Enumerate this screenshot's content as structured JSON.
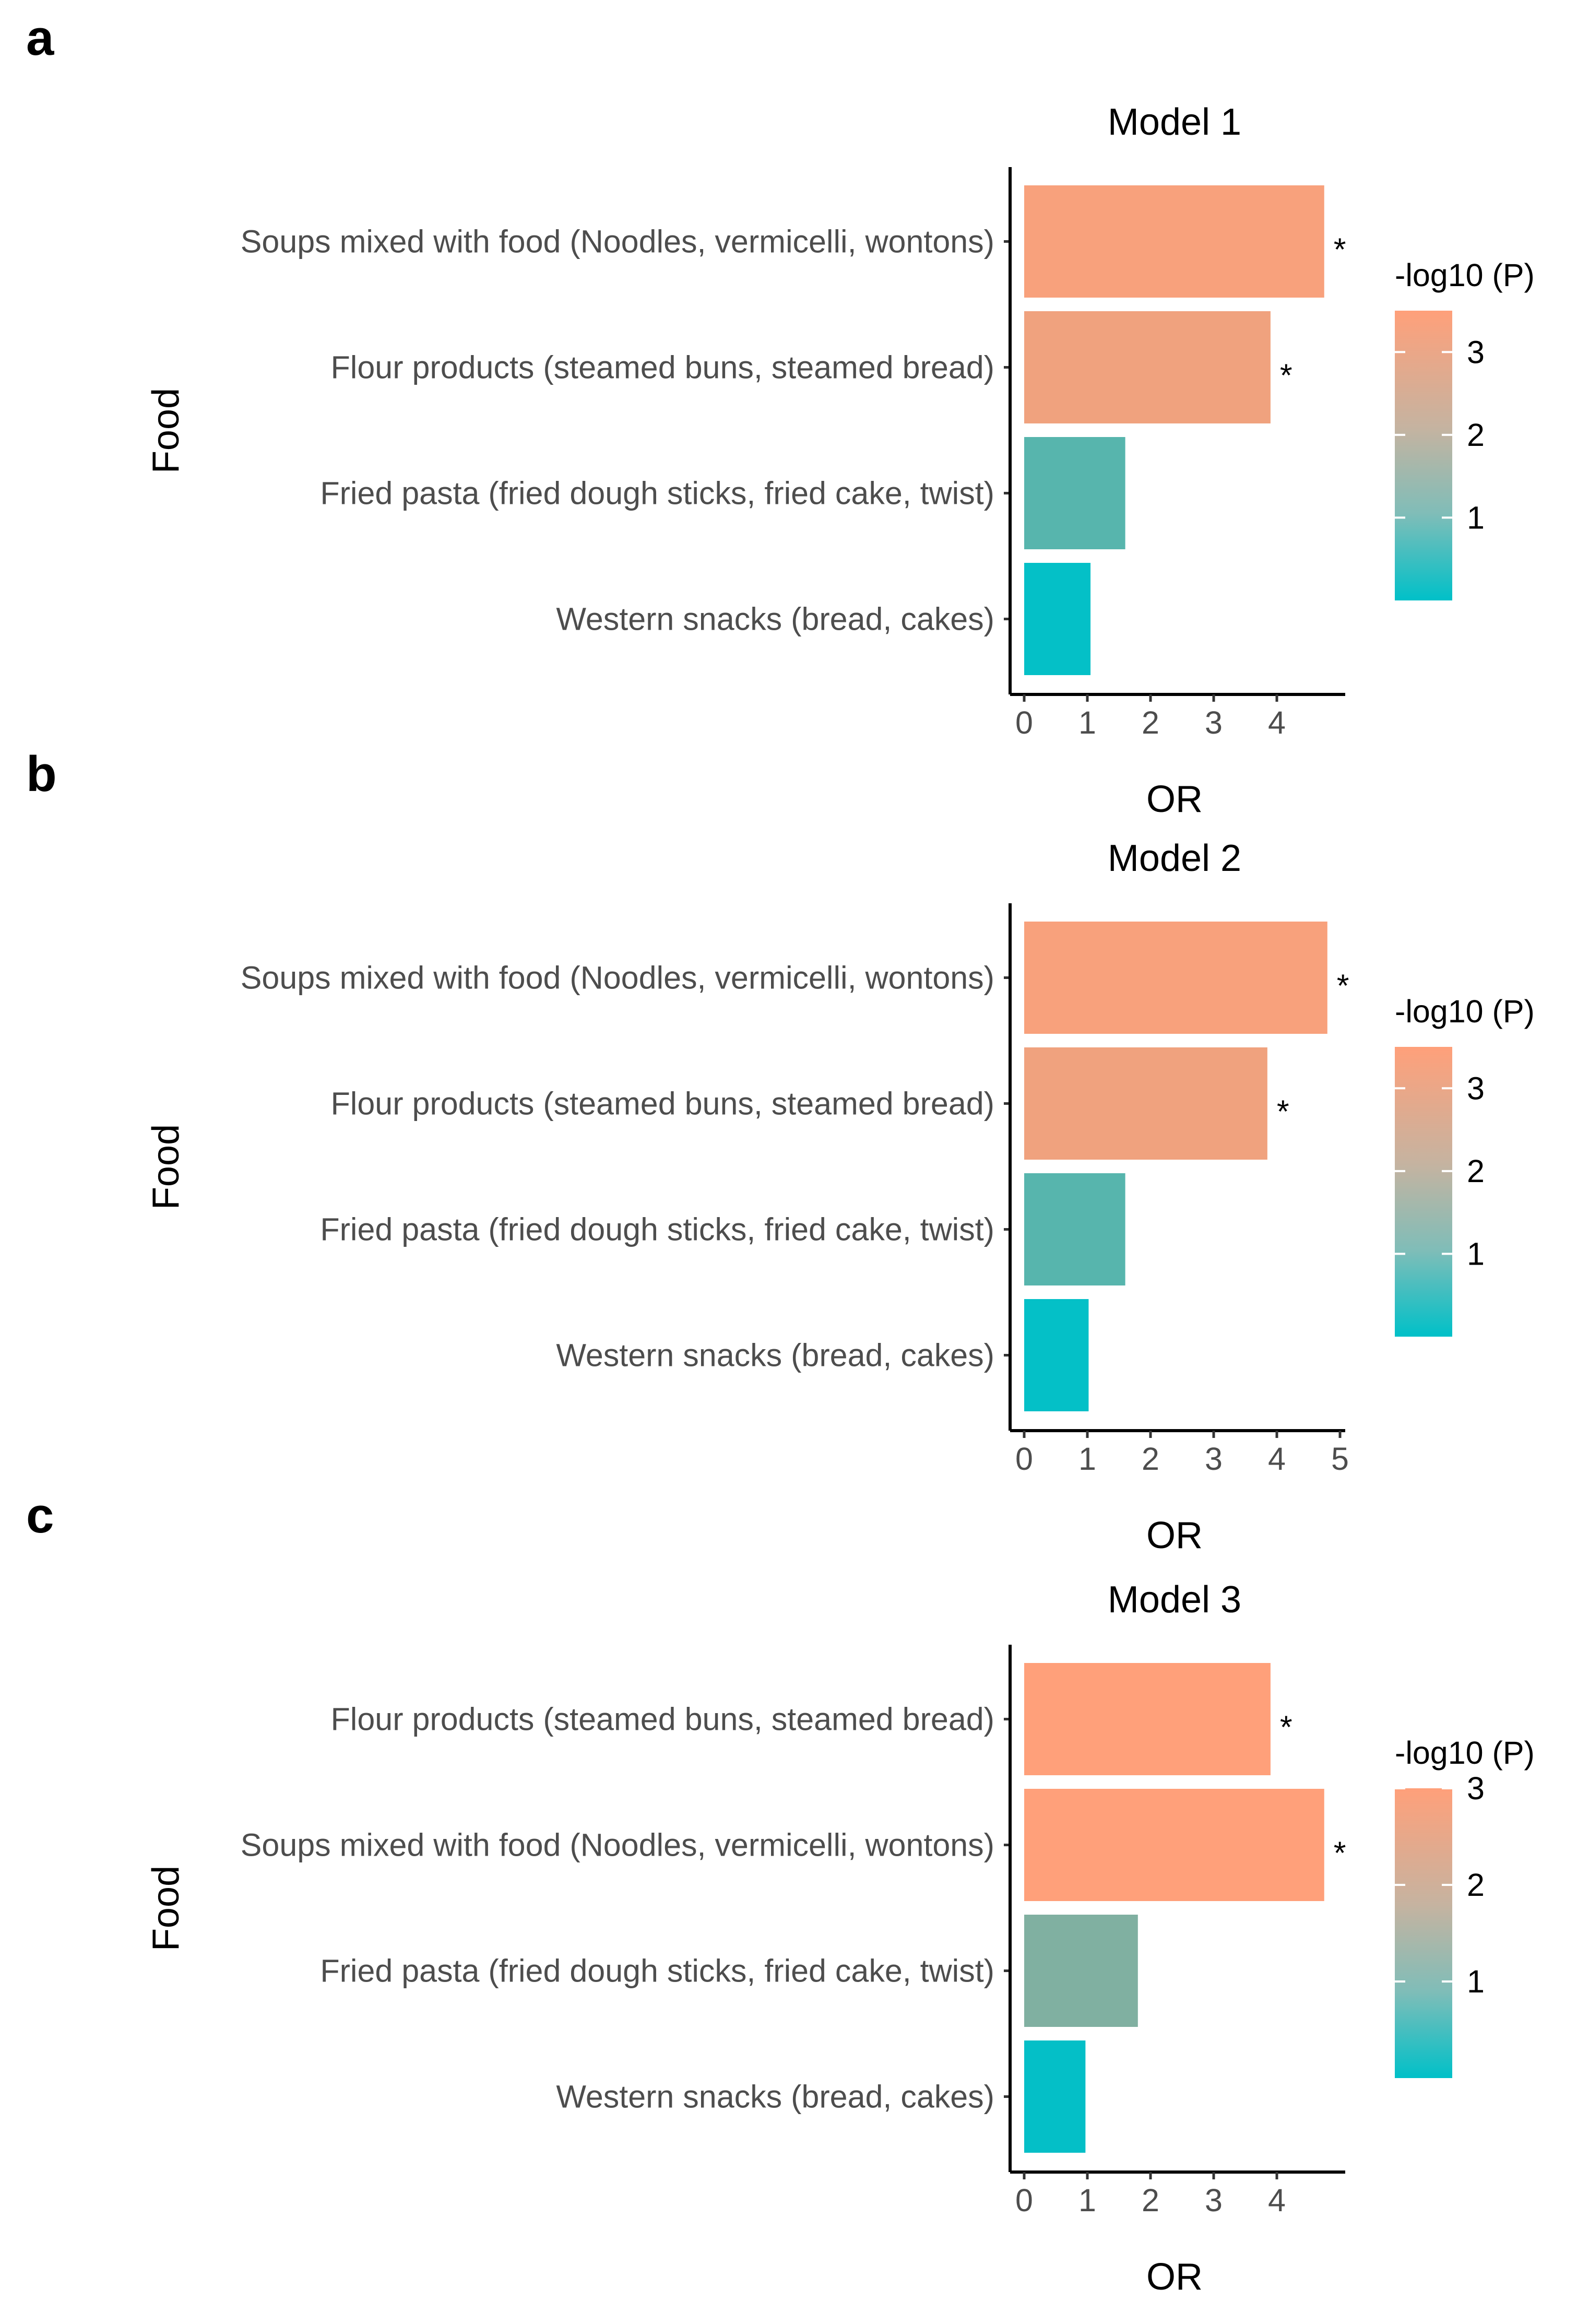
{
  "figure_panels": [
    "a",
    "b",
    "c"
  ],
  "colors": {
    "low": "#00C0C8",
    "high": "#FFA07A",
    "axis": "#000000",
    "tick_text": "#4d4d4d"
  },
  "chart_data": [
    {
      "panel": "a",
      "type": "bar",
      "orientation": "horizontal",
      "title": "Model 1",
      "xlabel": "OR",
      "ylabel": "Food",
      "xlim": [
        0,
        5
      ],
      "xticks": [
        "0",
        "1",
        "2",
        "3",
        "4"
      ],
      "categories": [
        "Soups mixed with food (Noodles, vermicelli, wontons)",
        "Flour products (steamed buns, steamed bread)",
        "Fried pasta (fried dough sticks, fried cake, twist)",
        "Western snacks (bread, cakes)"
      ],
      "values": [
        4.75,
        3.9,
        1.6,
        1.05
      ],
      "neglog10p": [
        3.4,
        3.3,
        1.2,
        0.05
      ],
      "significance": [
        "*",
        "*",
        "",
        ""
      ],
      "legend": {
        "title": "-log10 (P)",
        "ticks": [
          "1",
          "2",
          "3"
        ],
        "range": [
          0,
          3.5
        ],
        "position": "right"
      }
    },
    {
      "panel": "b",
      "type": "bar",
      "orientation": "horizontal",
      "title": "Model 2",
      "xlabel": "OR",
      "ylabel": "Food",
      "xlim": [
        0,
        5
      ],
      "xticks": [
        "0",
        "1",
        "2",
        "3",
        "4",
        "5"
      ],
      "categories": [
        "Soups mixed with food (Noodles, vermicelli, wontons)",
        "Flour products (steamed buns, steamed bread)",
        "Fried pasta (fried dough sticks, fried cake, twist)",
        "Western snacks (bread, cakes)"
      ],
      "values": [
        4.8,
        3.85,
        1.6,
        1.02
      ],
      "neglog10p": [
        3.4,
        3.3,
        1.2,
        0.05
      ],
      "significance": [
        "*",
        "*",
        "",
        ""
      ],
      "legend": {
        "title": "-log10 (P)",
        "ticks": [
          "1",
          "2",
          "3"
        ],
        "range": [
          0,
          3.5
        ],
        "position": "right"
      }
    },
    {
      "panel": "c",
      "type": "bar",
      "orientation": "horizontal",
      "title": "Model 3",
      "xlabel": "OR",
      "ylabel": "Food",
      "xlim": [
        0,
        5
      ],
      "xticks": [
        "0",
        "1",
        "2",
        "3",
        "4"
      ],
      "categories": [
        "Flour products (steamed buns, steamed bread)",
        "Soups mixed with food (Noodles, vermicelli, wontons)",
        "Fried pasta (fried dough sticks, fried cake, twist)",
        "Western snacks (bread, cakes)"
      ],
      "values": [
        3.9,
        4.75,
        1.8,
        0.97
      ],
      "neglog10p": [
        3.0,
        3.0,
        1.5,
        0.05
      ],
      "significance": [
        "*",
        "*",
        "",
        ""
      ],
      "legend": {
        "title": "-log10 (P)",
        "ticks": [
          "1",
          "2",
          "3"
        ],
        "range": [
          0,
          3.0
        ],
        "position": "right"
      }
    }
  ]
}
